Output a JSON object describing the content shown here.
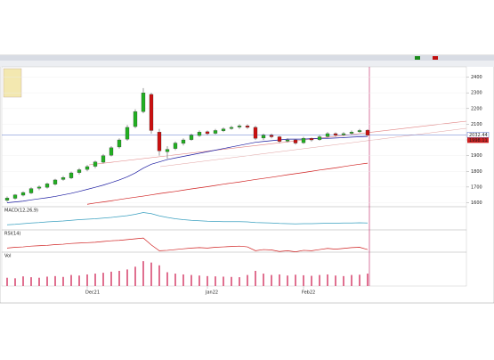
{
  "chart_data": {
    "type": "candlestick",
    "categories": [
      null,
      null,
      null,
      null,
      null,
      null,
      null,
      null,
      null,
      null,
      "Dec21",
      null,
      null,
      null,
      null,
      null,
      null,
      null,
      null,
      null,
      null,
      null,
      null,
      null,
      null,
      "Jan22",
      null,
      null,
      null,
      null,
      null,
      null,
      null,
      null,
      null,
      null,
      null,
      "Feb22",
      null,
      null,
      null,
      null,
      null,
      null,
      null,
      null
    ],
    "open": [
      1615,
      1628,
      1648,
      1662,
      1692,
      1698,
      1718,
      1748,
      1758,
      1792,
      1812,
      1832,
      1858,
      1902,
      1955,
      2005,
      2085,
      2180,
      2290,
      2050,
      1925,
      1945,
      1978,
      2002,
      2028,
      2052,
      2042,
      2058,
      2072,
      2082,
      2090,
      2080,
      2012,
      2030,
      2020,
      1992,
      2000,
      1982,
      2010,
      2002,
      2022,
      2040,
      2032,
      2042,
      2052,
      2062
    ],
    "high": [
      1640,
      1655,
      1672,
      1698,
      1710,
      1728,
      1752,
      1770,
      1798,
      1820,
      1840,
      1868,
      1910,
      1960,
      2010,
      2095,
      2195,
      2330,
      2300,
      2070,
      1960,
      1990,
      2010,
      2040,
      2060,
      2060,
      2070,
      2080,
      2090,
      2100,
      2100,
      2090,
      2040,
      2040,
      2025,
      2010,
      2005,
      2020,
      2015,
      2030,
      2050,
      2048,
      2050,
      2060,
      2070,
      2068
    ],
    "low": [
      1605,
      1620,
      1640,
      1655,
      1680,
      1690,
      1710,
      1740,
      1750,
      1780,
      1800,
      1820,
      1850,
      1895,
      1945,
      1995,
      2075,
      2170,
      2040,
      1900,
      1880,
      1935,
      1965,
      1995,
      2020,
      2030,
      2035,
      2050,
      2065,
      2070,
      2070,
      2000,
      2000,
      2010,
      1980,
      1985,
      1970,
      1975,
      1990,
      1995,
      2015,
      2020,
      2025,
      2035,
      2045,
      2025
    ],
    "close": [
      1630,
      1650,
      1665,
      1690,
      1700,
      1720,
      1745,
      1760,
      1790,
      1810,
      1830,
      1860,
      1900,
      1950,
      2000,
      2080,
      2180,
      2300,
      2060,
      1930,
      1940,
      1980,
      2000,
      2030,
      2050,
      2040,
      2060,
      2070,
      2080,
      2090,
      2080,
      2010,
      2030,
      2020,
      1990,
      2000,
      1980,
      2010,
      2000,
      2020,
      2040,
      2030,
      2040,
      2050,
      2060,
      2030
    ],
    "up_color": "#22b022",
    "down_color": "#cc1010",
    "overlays": [
      {
        "color": "#1a1aa0",
        "values": [
          1600,
          1605,
          1610,
          1618,
          1625,
          1632,
          1640,
          1650,
          1660,
          1672,
          1685,
          1698,
          1712,
          1728,
          1745,
          1765,
          1790,
          1820,
          1845,
          1860,
          1875,
          1885,
          1895,
          1905,
          1915,
          1925,
          1935,
          1945,
          1955,
          1965,
          1975,
          1985,
          1990,
          1995,
          2000,
          2005,
          2005,
          2005,
          2008,
          2010,
          2010,
          2012,
          2015,
          2018,
          2020,
          2022
        ]
      },
      {
        "color": "#d02020",
        "values": [
          null,
          null,
          null,
          null,
          null,
          null,
          null,
          null,
          null,
          null,
          1590,
          1598,
          1605,
          1612,
          1620,
          1628,
          1635,
          1642,
          1650,
          1658,
          1665,
          1672,
          1680,
          1688,
          1695,
          1702,
          1710,
          1718,
          1725,
          1732,
          1740,
          1748,
          1755,
          1762,
          1770,
          1778,
          1785,
          1792,
          1800,
          1808,
          1815,
          1822,
          1830,
          1838,
          1845,
          1852
        ]
      }
    ],
    "ylim": [
      1580,
      2460
    ],
    "yticks": [
      1600,
      1700,
      1800,
      1900,
      2000,
      2100,
      2200,
      2300,
      2400
    ],
    "last_price": {
      "value": 2032.44,
      "label": "2032.44"
    },
    "marker_price": {
      "value": 1998.11,
      "label": "1998.11"
    },
    "macd": {
      "title": "MACD(12,26,9)",
      "color": "#3aa0c0",
      "ylim": [
        -20,
        60
      ],
      "values": [
        -5,
        -3,
        0,
        3,
        5,
        8,
        10,
        12,
        15,
        18,
        20,
        22,
        25,
        28,
        32,
        36,
        42,
        50,
        45,
        35,
        28,
        22,
        18,
        15,
        13,
        11,
        10,
        9,
        9,
        9,
        8,
        5,
        4,
        3,
        1,
        0,
        -1,
        0,
        0,
        1,
        2,
        2,
        3,
        3,
        4,
        3
      ]
    },
    "rsi": {
      "title": "RSI(14)",
      "color": "#d02020",
      "ylim": [
        0,
        100
      ],
      "values": [
        62,
        64,
        65,
        67,
        68,
        69,
        71,
        72,
        74,
        75,
        76,
        77,
        79,
        81,
        82,
        84,
        86,
        88,
        70,
        55,
        56,
        58,
        60,
        62,
        63,
        62,
        64,
        65,
        66,
        67,
        65,
        55,
        58,
        57,
        53,
        55,
        52,
        56,
        55,
        58,
        61,
        59,
        61,
        63,
        64,
        58
      ]
    },
    "volume": {
      "title": "Vol",
      "color": "#e07090",
      "ylim": [
        0,
        100
      ],
      "values": [
        30,
        28,
        35,
        32,
        30,
        34,
        36,
        33,
        40,
        38,
        42,
        45,
        48,
        52,
        55,
        60,
        70,
        90,
        85,
        75,
        50,
        45,
        42,
        40,
        38,
        36,
        35,
        34,
        33,
        32,
        40,
        55,
        45,
        40,
        42,
        38,
        41,
        39,
        37,
        40,
        42,
        38,
        36,
        40,
        41,
        45
      ]
    }
  }
}
